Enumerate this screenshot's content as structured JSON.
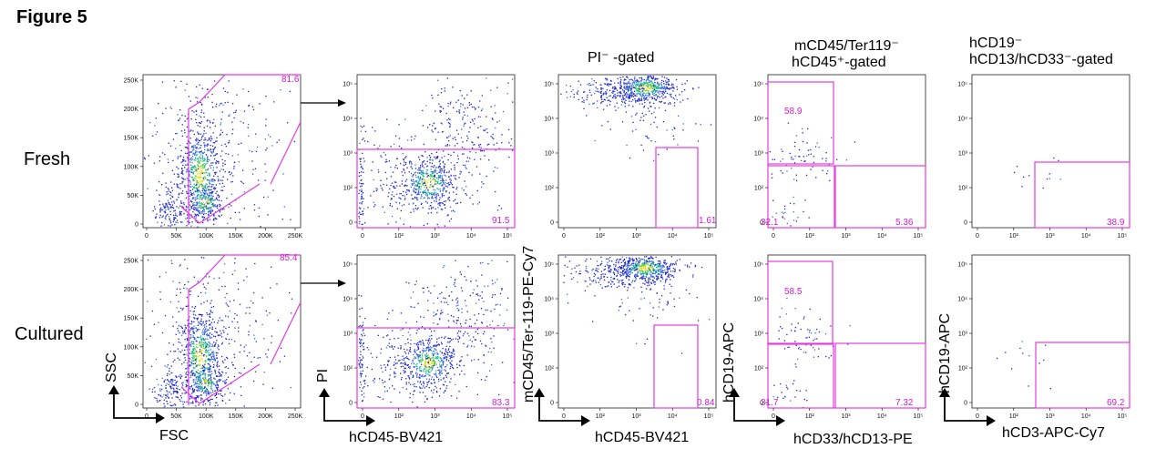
{
  "figure_title": "Figure 5",
  "row_labels": [
    "Fresh",
    "Cultured"
  ],
  "column_headers": [
    {
      "line1": "",
      "line2": ""
    },
    {
      "line1": "",
      "line2": ""
    },
    {
      "line1": "PI⁻ -gated",
      "line2": ""
    },
    {
      "line1": "mCD45/Ter119⁻",
      "line2": "hCD45⁺-gated"
    },
    {
      "line1": "hCD19⁻",
      "line2": "hCD13/hCD33⁻-gated"
    }
  ],
  "axis_labels": {
    "col1": {
      "x": "FSC",
      "y": "SSC"
    },
    "col2": {
      "x": "hCD45-BV421",
      "y": "PI"
    },
    "col3": {
      "x": "hCD45-BV421",
      "y": "mCD45/Ter-119-PE-Cy7"
    },
    "col4": {
      "x": "hCD33/hCD13-PE",
      "y": "hCD19-APC"
    },
    "col5": {
      "x": "hCD3-APC-Cy7",
      "y": "hCD19-APC"
    }
  },
  "colors": {
    "gate": "#e43be0",
    "pct": "#d41bd4",
    "dots": [
      "#1b22c9",
      "#3a6ad8",
      "#19b49c",
      "#58c837",
      "#e7df23"
    ]
  },
  "chart_data": [
    {
      "type": "scatter",
      "row": "Fresh",
      "column": 1,
      "xlabel": "FSC",
      "ylabel": "SSC",
      "xticks": [
        "0",
        "50K",
        "100K",
        "150K",
        "200K",
        "250K"
      ],
      "yticks": [
        "0",
        "50K",
        "100K",
        "150K",
        "200K",
        "250K"
      ],
      "gates": [
        {
          "percent": "81.6"
        }
      ]
    },
    {
      "type": "scatter",
      "row": "Fresh",
      "column": 2,
      "xlabel": "hCD45-BV421",
      "ylabel": "PI",
      "xticks": [
        "0",
        "10²",
        "10³",
        "10⁴",
        "10⁵"
      ],
      "yticks": [
        "0",
        "10²",
        "10³",
        "10⁴",
        "10⁵"
      ],
      "gates": [
        {
          "percent": "91.5"
        }
      ]
    },
    {
      "type": "scatter",
      "row": "Fresh",
      "column": 3,
      "xlabel": "hCD45-BV421",
      "ylabel": "mCD45/Ter-119-PE-Cy7",
      "xticks": [
        "0",
        "10²",
        "10³",
        "10⁴",
        "10⁵"
      ],
      "yticks": [
        "0",
        "10²",
        "10³",
        "10⁴",
        "10⁵"
      ],
      "gates": [
        {
          "percent": "1.61"
        }
      ]
    },
    {
      "type": "scatter",
      "row": "Fresh",
      "column": 4,
      "xlabel": "hCD33/hCD13-PE",
      "ylabel": "hCD19-APC",
      "xticks": [
        "0",
        "10²",
        "10³",
        "10⁴",
        "10⁵"
      ],
      "yticks": [
        "0",
        "10²",
        "10³",
        "10⁴",
        "10⁵"
      ],
      "gates": [
        {
          "percent": "58.9"
        },
        {
          "percent": "32.1"
        },
        {
          "percent": "5.36"
        }
      ]
    },
    {
      "type": "scatter",
      "row": "Fresh",
      "column": 5,
      "xlabel": "hCD3-APC-Cy7",
      "ylabel": "hCD19-APC",
      "xticks": [
        "0",
        "10²",
        "10³",
        "10⁴",
        "10⁵"
      ],
      "yticks": [
        "0",
        "10²",
        "10³",
        "10⁴",
        "10⁵"
      ],
      "gates": [
        {
          "percent": "38.9"
        }
      ]
    },
    {
      "type": "scatter",
      "row": "Cultured",
      "column": 1,
      "xlabel": "FSC",
      "ylabel": "SSC",
      "xticks": [
        "0",
        "50K",
        "100K",
        "150K",
        "200K",
        "250K"
      ],
      "yticks": [
        "0",
        "50K",
        "100K",
        "150K",
        "200K",
        "250K"
      ],
      "gates": [
        {
          "percent": "85.4"
        }
      ]
    },
    {
      "type": "scatter",
      "row": "Cultured",
      "column": 2,
      "xlabel": "hCD45-BV421",
      "ylabel": "PI",
      "xticks": [
        "0",
        "10²",
        "10³",
        "10⁴",
        "10⁵"
      ],
      "yticks": [
        "0",
        "10²",
        "10³",
        "10⁴",
        "10⁵"
      ],
      "gates": [
        {
          "percent": "83.3"
        }
      ]
    },
    {
      "type": "scatter",
      "row": "Cultured",
      "column": 3,
      "xlabel": "hCD45-BV421",
      "ylabel": "mCD45/Ter-119-PE-Cy7",
      "xticks": [
        "0",
        "10²",
        "10³",
        "10⁴",
        "10⁵"
      ],
      "yticks": [
        "0",
        "10²",
        "10³",
        "10⁴",
        "10⁵"
      ],
      "gates": [
        {
          "percent": "0.84"
        }
      ]
    },
    {
      "type": "scatter",
      "row": "Cultured",
      "column": 4,
      "xlabel": "hCD33/hCD13-PE",
      "ylabel": "hCD19-APC",
      "xticks": [
        "0",
        "10²",
        "10³",
        "10⁴",
        "10⁵"
      ],
      "yticks": [
        "0",
        "10²",
        "10³",
        "10⁴",
        "10⁵"
      ],
      "gates": [
        {
          "percent": "58.5"
        },
        {
          "percent": "31.7"
        },
        {
          "percent": "7.32"
        }
      ]
    },
    {
      "type": "scatter",
      "row": "Cultured",
      "column": 5,
      "xlabel": "hCD3-APC-Cy7",
      "ylabel": "hCD19-APC",
      "xticks": [
        "0",
        "10²",
        "10³",
        "10⁴",
        "10⁵"
      ],
      "yticks": [
        "0",
        "10²",
        "10³",
        "10⁴",
        "10⁵"
      ],
      "gates": [
        {
          "percent": "69.2"
        }
      ]
    }
  ]
}
